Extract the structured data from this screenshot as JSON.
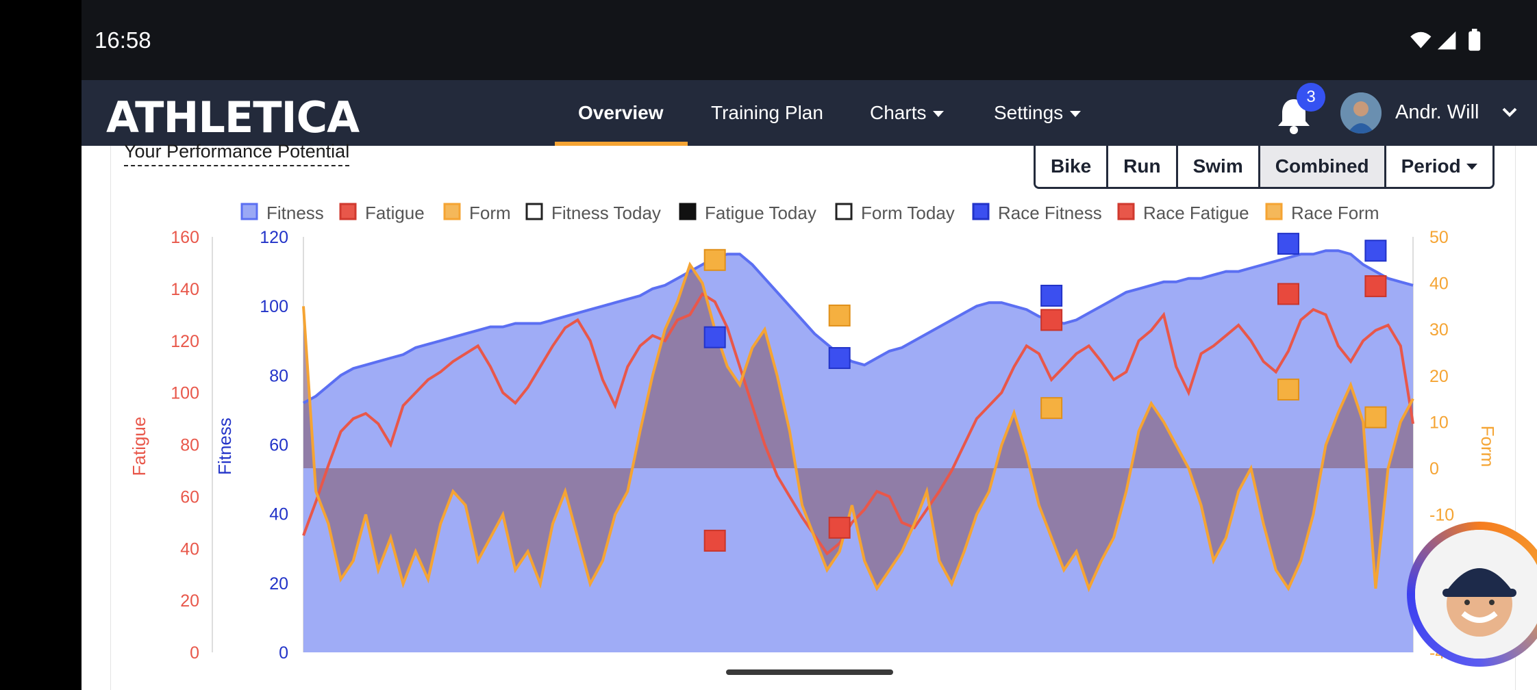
{
  "status_bar": {
    "time": "16:58"
  },
  "navbar": {
    "logo": "ATHLETICA",
    "items": [
      {
        "label": "Overview",
        "active": true
      },
      {
        "label": "Training Plan"
      },
      {
        "label": "Charts",
        "dropdown": true
      },
      {
        "label": "Settings",
        "dropdown": true
      }
    ],
    "notifications_count": "3",
    "user_name": "Andr. Will"
  },
  "section": {
    "title": "Your Performance Potential"
  },
  "sport_selector": {
    "buttons": [
      "Bike",
      "Run",
      "Swim",
      "Combined"
    ],
    "active": "Combined",
    "period_label": "Period"
  },
  "colors": {
    "fitness": "#5b6ff2",
    "fitness_fill": "#9aa8f5",
    "fatigue": "#e8574a",
    "form": "#f5a433",
    "race_fitness": "#3b4ff0",
    "race_fatigue": "#e8493d",
    "race_form": "#f5a433"
  },
  "chart_data": {
    "type": "line",
    "legend": [
      {
        "name": "Fitness",
        "icon": "square-fill-blue"
      },
      {
        "name": "Fatigue",
        "icon": "square-fill-red"
      },
      {
        "name": "Form",
        "icon": "square-fill-orange"
      },
      {
        "name": "Fitness Today",
        "icon": "square-outline"
      },
      {
        "name": "Fatigue Today",
        "icon": "square-fill-black"
      },
      {
        "name": "Form Today",
        "icon": "square-outline"
      },
      {
        "name": "Race Fitness",
        "icon": "square-fill-blue-dark"
      },
      {
        "name": "Race Fatigue",
        "icon": "square-fill-red"
      },
      {
        "name": "Race Form",
        "icon": "square-fill-orange"
      }
    ],
    "axes": {
      "fatigue": {
        "label": "Fatigue",
        "ticks": [
          "160",
          "140",
          "120",
          "100",
          "80",
          "60",
          "40",
          "20",
          "0"
        ],
        "range": [
          0,
          160
        ]
      },
      "fitness": {
        "label": "Fitness",
        "ticks": [
          "120",
          "100",
          "80",
          "60",
          "40",
          "20",
          "0"
        ],
        "range": [
          0,
          120
        ]
      },
      "form": {
        "label": "Form",
        "ticks": [
          "50",
          "40",
          "30",
          "20",
          "10",
          "0",
          "-10",
          "-40"
        ],
        "range": [
          -40,
          50
        ]
      }
    },
    "series": [
      {
        "name": "Fitness",
        "axis": "fitness",
        "values": [
          72,
          74,
          77,
          80,
          82,
          83,
          84,
          85,
          86,
          88,
          89,
          90,
          91,
          92,
          93,
          94,
          94,
          95,
          95,
          95,
          96,
          97,
          98,
          99,
          100,
          101,
          102,
          103,
          105,
          106,
          108,
          110,
          112,
          114,
          115,
          115,
          112,
          108,
          104,
          100,
          96,
          92,
          89,
          86,
          84,
          83,
          85,
          87,
          88,
          90,
          92,
          94,
          96,
          98,
          100,
          101,
          101,
          100,
          99,
          97,
          96,
          95,
          96,
          98,
          100,
          102,
          104,
          105,
          106,
          107,
          107,
          108,
          108,
          109,
          110,
          110,
          111,
          112,
          113,
          114,
          115,
          115,
          116,
          116,
          115,
          112,
          110,
          108,
          107,
          106
        ]
      },
      {
        "name": "Fatigue",
        "axis": "fatigue",
        "values": [
          45,
          58,
          72,
          85,
          90,
          92,
          88,
          80,
          95,
          100,
          105,
          108,
          112,
          115,
          118,
          110,
          100,
          96,
          102,
          110,
          118,
          125,
          128,
          120,
          105,
          95,
          110,
          118,
          122,
          120,
          128,
          130,
          138,
          135,
          125,
          110,
          95,
          80,
          68,
          60,
          52,
          45,
          38,
          42,
          50,
          55,
          62,
          60,
          50,
          48,
          55,
          62,
          70,
          80,
          90,
          95,
          100,
          110,
          118,
          115,
          105,
          110,
          115,
          118,
          112,
          105,
          108,
          120,
          124,
          130,
          110,
          100,
          115,
          118,
          122,
          126,
          120,
          112,
          108,
          116,
          128,
          132,
          130,
          118,
          112,
          120,
          124,
          126,
          118,
          88
        ]
      },
      {
        "name": "Form",
        "axis": "form",
        "values": [
          35,
          -5,
          -12,
          -24,
          -20,
          -10,
          -22,
          -15,
          -25,
          -18,
          -24,
          -12,
          -5,
          -8,
          -20,
          -15,
          -10,
          -22,
          -18,
          -25,
          -12,
          -5,
          -15,
          -25,
          -20,
          -10,
          -5,
          8,
          20,
          30,
          36,
          44,
          40,
          30,
          22,
          18,
          26,
          30,
          20,
          8,
          -8,
          -15,
          -22,
          -18,
          -8,
          -20,
          -26,
          -22,
          -18,
          -12,
          -5,
          -20,
          -25,
          -18,
          -10,
          -5,
          5,
          12,
          3,
          -8,
          -15,
          -22,
          -18,
          -26,
          -20,
          -15,
          -5,
          8,
          14,
          10,
          5,
          0,
          -8,
          -20,
          -15,
          -5,
          0,
          -12,
          -22,
          -26,
          -20,
          -10,
          5,
          12,
          18,
          10,
          -26,
          0,
          10,
          15
        ]
      }
    ],
    "race_points": [
      {
        "index": 33,
        "fitness": 91,
        "fatigue": 43,
        "form": 45
      },
      {
        "index": 43,
        "fitness": 85,
        "fatigue": 48,
        "form": 33
      },
      {
        "index": 60,
        "fitness": 103,
        "fatigue": 128,
        "form": 13
      },
      {
        "index": 79,
        "fitness": 118,
        "fatigue": 138,
        "form": 17
      },
      {
        "index": 86,
        "fitness": 116,
        "fatigue": 141,
        "form": 11
      }
    ],
    "grid": false,
    "legend_placement": "top"
  }
}
